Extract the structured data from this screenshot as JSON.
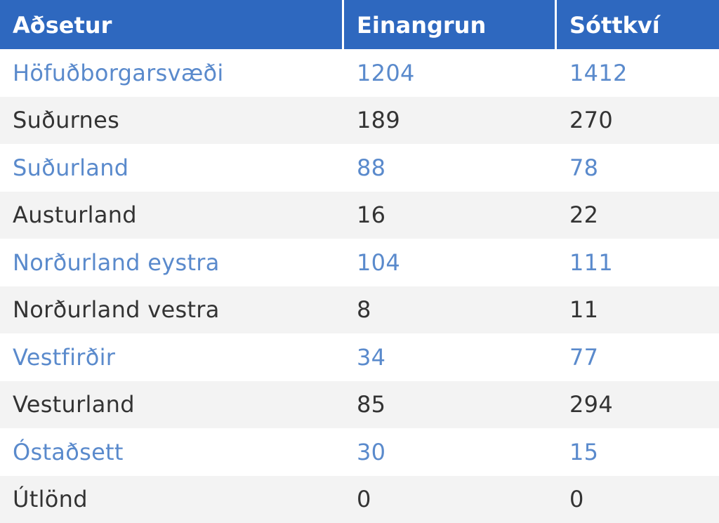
{
  "chart_data": {
    "type": "table",
    "columns": [
      "Aðsetur",
      "Einangrun",
      "Sóttkví"
    ],
    "rows": [
      {
        "region": "Höfuðborgarsvæði",
        "einangrun": "1204",
        "sottkvi": "1412"
      },
      {
        "region": "Suðurnes",
        "einangrun": "189",
        "sottkvi": "270"
      },
      {
        "region": "Suðurland",
        "einangrun": "88",
        "sottkvi": "78"
      },
      {
        "region": "Austurland",
        "einangrun": "16",
        "sottkvi": "22"
      },
      {
        "region": "Norðurland eystra",
        "einangrun": "104",
        "sottkvi": "111"
      },
      {
        "region": "Norðurland vestra",
        "einangrun": "8",
        "sottkvi": "11"
      },
      {
        "region": "Vestfirðir",
        "einangrun": "34",
        "sottkvi": "77"
      },
      {
        "region": "Vesturland",
        "einangrun": "85",
        "sottkvi": "294"
      },
      {
        "region": "Óstaðsett",
        "einangrun": "30",
        "sottkvi": "15"
      },
      {
        "region": "Útlönd",
        "einangrun": "0",
        "sottkvi": "0"
      }
    ]
  },
  "colors": {
    "header_bg": "#2e68bf",
    "header_text": "#ffffff",
    "odd_row_text": "#5a8acc",
    "even_row_text": "#333333",
    "even_row_bg": "#f3f3f3"
  }
}
